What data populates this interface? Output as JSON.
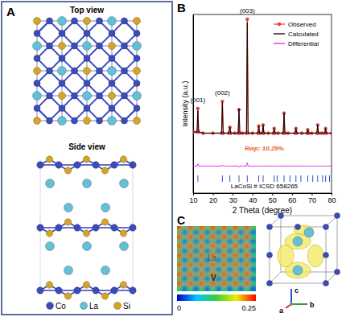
{
  "panels": {
    "A": {
      "label": "A",
      "top_view": "Top view",
      "side_view": "Side view",
      "legend": [
        {
          "name": "Co",
          "color": "#3b4cc0"
        },
        {
          "name": "La",
          "color": "#62c0d8"
        },
        {
          "name": "Si",
          "color": "#d9a521"
        }
      ]
    },
    "C": {
      "label": "C",
      "labels": [
        "La",
        "V"
      ],
      "axes": [
        "a",
        "b",
        "c"
      ],
      "colorbar": {
        "range": [
          0,
          0.25
        ],
        "ticks": [
          0,
          0.25
        ]
      },
      "cells": [
        [
          0.25,
          0.12,
          0.25,
          0.12,
          0.25,
          0.12,
          0.25,
          0.12,
          0.25,
          0.12,
          0.25,
          0.12,
          0.25,
          0.12
        ],
        [
          0.12,
          0.03,
          0.12,
          0.03,
          0.12,
          0.03,
          0.12,
          0.03,
          0.12,
          0.03,
          0.12,
          0.03,
          0.12,
          0.03
        ],
        [
          0.25,
          0.12,
          0.25,
          0.12,
          0.25,
          0.12,
          0.25,
          0.12,
          0.25,
          0.12,
          0.25,
          0.12,
          0.25,
          0.12
        ],
        [
          0.12,
          0.03,
          0.12,
          0.03,
          0.12,
          0.03,
          0.12,
          0.03,
          0.12,
          0.03,
          0.12,
          0.03,
          0.12,
          0.03
        ],
        [
          0.25,
          0.12,
          0.25,
          0.12,
          0.25,
          0.12,
          0.25,
          0.12,
          0.25,
          0.12,
          0.25,
          0.12,
          0.25,
          0.12
        ],
        [
          0.12,
          0.03,
          0.12,
          0.03,
          0.12,
          0.03,
          0.12,
          0.03,
          0.12,
          0.03,
          0.12,
          0.03,
          0.12,
          0.03
        ],
        [
          0.25,
          0.12,
          0.25,
          0.12,
          0.25,
          0.12,
          0.25,
          0.12,
          0.25,
          0.12,
          0.25,
          0.12,
          0.25,
          0.12
        ],
        [
          0.12,
          0.03,
          0.12,
          0.03,
          0.12,
          0.03,
          0.12,
          0.03,
          0.12,
          0.03,
          0.12,
          0.03,
          0.12,
          0.03
        ],
        [
          0.25,
          0.12,
          0.25,
          0.12,
          0.25,
          0.12,
          0.25,
          0.12,
          0.25,
          0.12,
          0.25,
          0.12,
          0.25,
          0.12
        ],
        [
          0.12,
          0.03,
          0.12,
          0.03,
          0.12,
          0.03,
          0.12,
          0.03,
          0.12,
          0.03,
          0.12,
          0.03,
          0.12,
          0.03
        ],
        [
          0.25,
          0.12,
          0.25,
          0.12,
          0.25,
          0.12,
          0.25,
          0.12,
          0.25,
          0.12,
          0.25,
          0.12,
          0.25,
          0.12
        ],
        [
          0.12,
          0.03,
          0.12,
          0.03,
          0.12,
          0.03,
          0.12,
          0.03,
          0.12,
          0.03,
          0.12,
          0.03,
          0.12,
          0.03
        ],
        [
          0.25,
          0.12,
          0.25,
          0.12,
          0.25,
          0.12,
          0.25,
          0.12,
          0.25,
          0.12,
          0.25,
          0.12,
          0.25,
          0.12
        ],
        [
          0.12,
          0.03,
          0.12,
          0.03,
          0.12,
          0.03,
          0.12,
          0.03,
          0.12,
          0.03,
          0.12,
          0.03,
          0.12,
          0.03
        ]
      ]
    }
  },
  "chart_data": {
    "type": "line",
    "label": "B",
    "xlabel": "2 Theta (degree)",
    "ylabel": "Intensity (a.u.)",
    "xlim": [
      10,
      80
    ],
    "xticks": [
      10,
      20,
      30,
      40,
      50,
      60,
      70,
      80
    ],
    "ylim": [
      -48,
      104
    ],
    "tick_labels": "x",
    "legend": "upper right",
    "x": [
      10,
      12,
      12.4,
      12.8,
      15,
      20,
      24.4,
      24.8,
      25.2,
      28,
      28.6,
      29,
      31,
      32.8,
      33.2,
      33.6,
      35,
      37.0,
      37.4,
      37.8,
      40,
      42.8,
      43.2,
      43.6,
      45,
      45.4,
      45.8,
      48,
      50.6,
      51,
      51.4,
      53,
      55.6,
      56,
      56.4,
      58,
      61.6,
      62,
      62.4,
      65,
      67.6,
      68,
      68.4,
      70,
      72.6,
      73,
      73.4,
      75,
      76.6,
      77,
      77.4,
      80
    ],
    "series": [
      {
        "name": "Observed",
        "color": "#e8403c",
        "marker": "circle",
        "values": [
          4,
          4,
          24,
          4,
          3,
          3,
          3,
          30,
          3,
          3,
          8,
          3,
          3,
          3,
          23,
          3,
          3,
          3,
          100,
          3,
          3,
          3,
          9,
          3,
          3,
          10,
          3,
          3,
          3,
          7,
          3,
          3,
          3,
          20,
          3,
          3,
          3,
          7,
          3,
          3,
          3,
          6,
          3,
          3,
          3,
          10,
          3,
          3,
          3,
          7,
          3,
          3
        ]
      },
      {
        "name": "Calculated",
        "color": "#000000",
        "values": [
          4,
          4,
          22,
          4,
          3,
          3,
          3,
          29,
          3,
          3,
          8,
          3,
          3,
          3,
          24,
          3,
          3,
          3,
          97,
          3,
          3,
          3,
          9,
          3,
          3,
          10,
          3,
          3,
          3,
          7,
          3,
          3,
          3,
          20,
          3,
          3,
          3,
          7,
          3,
          3,
          3,
          6,
          3,
          3,
          3,
          10,
          3,
          3,
          3,
          7,
          3,
          3
        ]
      },
      {
        "name": "Differential",
        "color": "#e020e0",
        "values": [
          -25,
          -25,
          -23,
          -25,
          -25,
          -25,
          -25,
          -24,
          -25,
          -25,
          -25,
          -25,
          -25,
          -25,
          -26,
          -25,
          -25,
          -25,
          -22,
          -25,
          -25,
          -25,
          -25,
          -25,
          -25,
          -25,
          -25,
          -25,
          -25,
          -25,
          -25,
          -25,
          -25,
          -25,
          -25,
          -25,
          -25,
          -25,
          -25,
          -25,
          -25,
          -25,
          -25,
          -25,
          -25,
          -25,
          -25,
          -25,
          -25,
          -25,
          -25,
          -25
        ]
      }
    ],
    "reflections": {
      "color": "#3050c8",
      "values": [
        12.4,
        24.8,
        28.6,
        33.2,
        37.4,
        43.2,
        45.4,
        51,
        52.5,
        56,
        59,
        62,
        64.5,
        68,
        70.5,
        73,
        75.5,
        77,
        79
      ]
    },
    "annotations": [
      {
        "text": "(001)",
        "x": 12.4,
        "y": 28
      },
      {
        "text": "(002)",
        "x": 24.8,
        "y": 34
      },
      {
        "text": "(003)",
        "x": 37.4,
        "y": 104
      },
      {
        "text": "Rwp: 10.29%",
        "x": 46,
        "y": -13,
        "color": "#e8602c"
      },
      {
        "text": "LaCoSi # ICSD 658265",
        "x": 46,
        "y": -45
      }
    ]
  }
}
